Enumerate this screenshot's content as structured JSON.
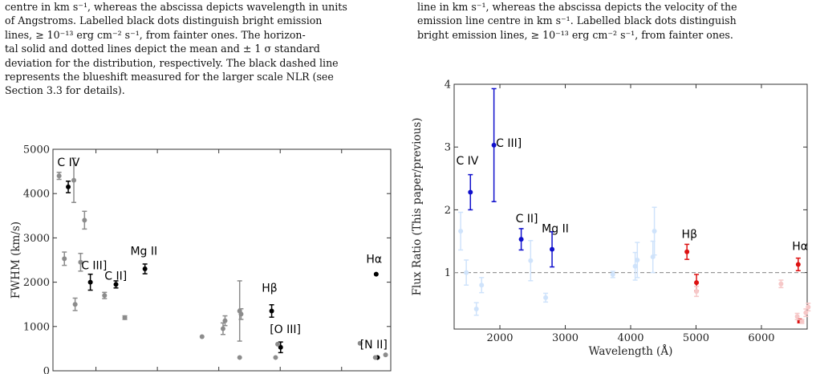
{
  "captions": {
    "left": [
      "centre in km s⁻¹, whereas the abscissa depicts wavelength in units",
      "of Angstroms. Labelled black dots distinguish bright emission",
      "lines, ≥ 10⁻¹³ erg cm⁻² s⁻¹, from fainter ones. The horizon-",
      "tal solid and dotted lines depict the mean and ± 1 σ standard",
      "deviation for the distribution, respectively. The black dashed line",
      "represents the blueshift measured for the larger scale NLR (see",
      "Section 3.3 for details)."
    ],
    "right": [
      "line in km s⁻¹, whereas the abscissa depicts the velocity of the",
      "emission line centre in km s⁻¹. Labelled black dots distinguish",
      "bright emission lines, ≥ 10⁻¹³ erg cm⁻² s⁻¹, from fainter ones."
    ]
  },
  "chart_data": [
    {
      "type": "scatter",
      "title": "",
      "xlabel": "",
      "ylabel": "FWHM (km/s)",
      "xlim": [
        1300,
        6800
      ],
      "ylim": [
        0,
        5000
      ],
      "xticks": [
        2000,
        3000,
        4000,
        5000,
        6000
      ],
      "yticks": [
        0,
        1000,
        2000,
        3000,
        4000,
        5000
      ],
      "grid": false,
      "series": [
        {
          "color": "#000000",
          "points": [
            {
              "x": 1549,
              "y": 4150,
              "err": 130
            },
            {
              "x": 1909,
              "y": 2000,
              "err": 180
            },
            {
              "x": 2326,
              "y": 1950,
              "err": 80
            },
            {
              "x": 2798,
              "y": 2300,
              "err": 110
            },
            {
              "x": 4861,
              "y": 1350,
              "err": 140
            },
            {
              "x": 5007,
              "y": 530,
              "err": 120
            },
            {
              "x": 6563,
              "y": 2180,
              "err": 0
            },
            {
              "x": 6584,
              "y": 300,
              "err": 0
            }
          ]
        },
        {
          "color": "#8c8c8c",
          "points": [
            {
              "x": 1400,
              "y": 4400,
              "err": 80
            },
            {
              "x": 1486,
              "y": 2530,
              "err": 150
            },
            {
              "x": 1640,
              "y": 4300,
              "err": 500
            },
            {
              "x": 1661,
              "y": 1500,
              "err": 140
            },
            {
              "x": 1750,
              "y": 2450,
              "err": 200
            },
            {
              "x": 1814,
              "y": 3400,
              "err": 200
            },
            {
              "x": 2140,
              "y": 1700,
              "err": 70
            },
            {
              "x": 2470,
              "y": 1200,
              "err": 40
            },
            {
              "x": 3727,
              "y": 770,
              "err": 0
            },
            {
              "x": 4069,
              "y": 950,
              "err": 130
            },
            {
              "x": 4102,
              "y": 1130,
              "err": 110
            },
            {
              "x": 4340,
              "y": 300,
              "err": 0
            },
            {
              "x": 4340,
              "y": 1350,
              "err": 680
            },
            {
              "x": 4363,
              "y": 1280,
              "err": 120
            },
            {
              "x": 4959,
              "y": 600,
              "err": 0
            },
            {
              "x": 4925,
              "y": 300,
              "err": 0
            },
            {
              "x": 6300,
              "y": 620,
              "err": 0
            },
            {
              "x": 6548,
              "y": 300,
              "err": 0
            },
            {
              "x": 6716,
              "y": 360,
              "err": 0
            }
          ]
        }
      ],
      "annotations": [
        {
          "text": "C IV",
          "x": 1370,
          "y": 4620
        },
        {
          "text": "C III]",
          "x": 1760,
          "y": 2290
        },
        {
          "text": "C II]",
          "x": 2140,
          "y": 2060
        },
        {
          "text": "Mg II",
          "x": 2560,
          "y": 2620
        },
        {
          "text": "Hβ",
          "x": 4700,
          "y": 1780
        },
        {
          "text": "[O III]",
          "x": 4830,
          "y": 850
        },
        {
          "text": "Hα",
          "x": 6400,
          "y": 2440
        },
        {
          "text": "[N II]",
          "x": 6300,
          "y": 510
        }
      ]
    },
    {
      "type": "scatter",
      "title": "",
      "xlabel": "Wavelength (Å)",
      "ylabel": "Flux Ratio (This paper/previous)",
      "xlim": [
        1300,
        6700
      ],
      "ylim": [
        0.1,
        4.0
      ],
      "xticks": [
        2000,
        3000,
        4000,
        5000,
        6000
      ],
      "yticks": [
        1,
        2,
        3,
        4
      ],
      "reference_line": 1,
      "grid": false,
      "series": [
        {
          "color": "#1010cc",
          "points": [
            {
              "x": 1549,
              "y": 2.28,
              "err": 0.28
            },
            {
              "x": 1909,
              "y": 3.03,
              "err": 0.9
            },
            {
              "x": 2326,
              "y": 1.53,
              "err": 0.17
            },
            {
              "x": 2798,
              "y": 1.37,
              "err": 0.28
            }
          ]
        },
        {
          "color": "#dd1111",
          "points": [
            {
              "x": 4861,
              "y": 1.33,
              "err": 0.12
            },
            {
              "x": 5007,
              "y": 0.84,
              "err": 0.13
            },
            {
              "x": 6563,
              "y": 1.13,
              "err": 0.1
            },
            {
              "x": 6584,
              "y": 0.23,
              "err": 0.03
            }
          ]
        },
        {
          "color": "#cfe3fb",
          "points": [
            {
              "x": 1400,
              "y": 1.66,
              "err": 0.3
            },
            {
              "x": 1486,
              "y": 1.0,
              "err": 0.2
            },
            {
              "x": 1640,
              "y": 0.42,
              "err": 0.1
            },
            {
              "x": 1720,
              "y": 0.8,
              "err": 0.12
            },
            {
              "x": 2470,
              "y": 1.19,
              "err": 0.32
            },
            {
              "x": 2700,
              "y": 0.6,
              "err": 0.07
            },
            {
              "x": 3727,
              "y": 0.97,
              "err": 0.05
            },
            {
              "x": 4069,
              "y": 1.1,
              "err": 0.22
            },
            {
              "x": 4102,
              "y": 1.2,
              "err": 0.28
            },
            {
              "x": 4340,
              "y": 1.25,
              "err": 0.25
            },
            {
              "x": 4363,
              "y": 1.66,
              "err": 0.38
            }
          ]
        },
        {
          "color": "#f6c8c8",
          "points": [
            {
              "x": 5007,
              "y": 0.7,
              "err": 0.08
            },
            {
              "x": 6300,
              "y": 0.82,
              "err": 0.06
            },
            {
              "x": 6548,
              "y": 0.3,
              "err": 0.05
            },
            {
              "x": 6620,
              "y": 0.22,
              "err": 0.03
            },
            {
              "x": 6680,
              "y": 0.36,
              "err": 0.06
            },
            {
              "x": 6716,
              "y": 0.45,
              "err": 0.06
            }
          ]
        }
      ],
      "annotations": [
        {
          "text": "C IV",
          "x": 1330,
          "y": 2.72
        },
        {
          "text": "C III]",
          "x": 1940,
          "y": 3.0
        },
        {
          "text": "C II]",
          "x": 2240,
          "y": 1.8
        },
        {
          "text": "Mg II",
          "x": 2640,
          "y": 1.64
        },
        {
          "text": "Hβ",
          "x": 4780,
          "y": 1.55
        },
        {
          "text": "Hα",
          "x": 6470,
          "y": 1.36
        }
      ]
    }
  ]
}
